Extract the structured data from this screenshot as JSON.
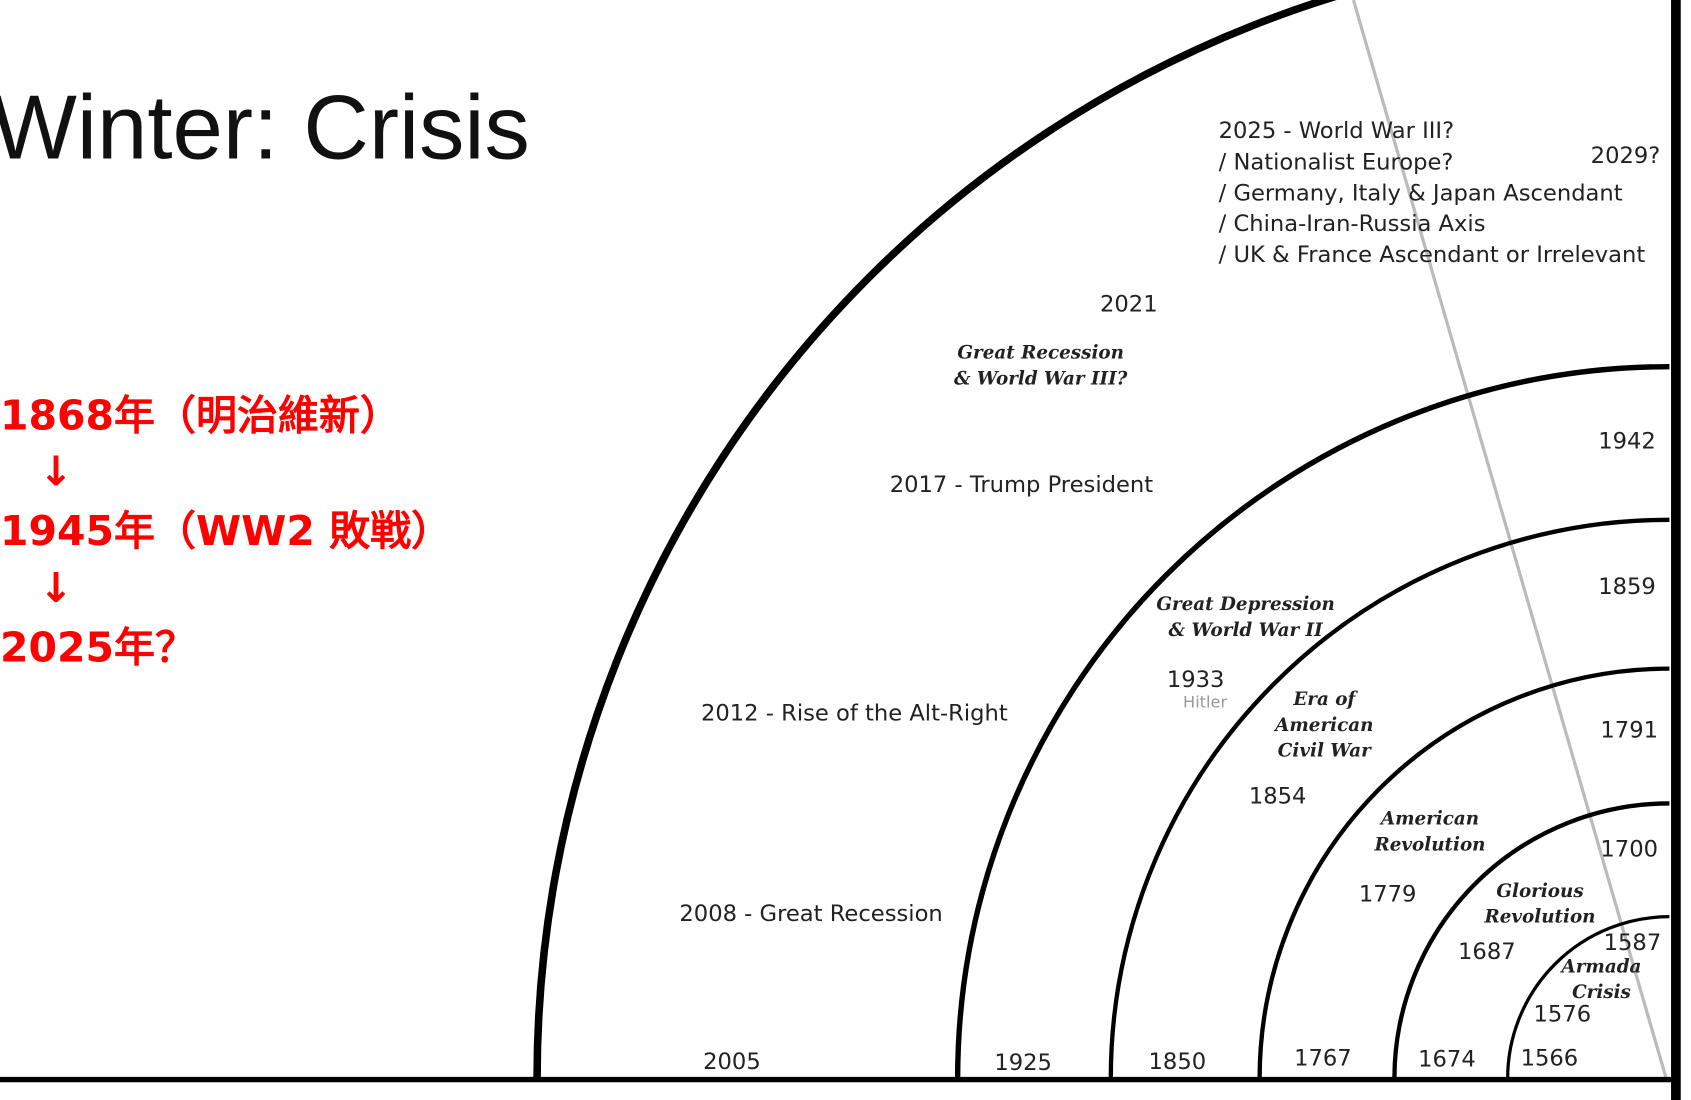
{
  "title": "Winter: Crisis",
  "note": [
    "1868年（明治維新）",
    "↓",
    "1945年（WW2 敗戦）",
    "↓",
    "2025年？"
  ],
  "forecast": [
    "2025 - World War III?",
    "/ Nationalist Europe?",
    "/ Germany, Italy & Japan Ascendant",
    "/ China-Iran-Russia Axis",
    "/ UK & France Ascendant or Irrelevant"
  ],
  "labels": [
    "2029?",
    "2021",
    "2017 - Trump President",
    "1942",
    "1859",
    "1933",
    "2012 - Rise of the Alt-Right",
    "1791",
    "1854",
    "1700",
    "1779",
    "2008 - Great Recession",
    "1687",
    "1587",
    "1576",
    "2005",
    "1925",
    "1850",
    "1767",
    "1674",
    "1566"
  ],
  "small_label": "Hitler",
  "eras": [
    [
      "Great Recession",
      "& World War III?"
    ],
    [
      "Great Depression",
      "& World War II"
    ],
    [
      "Era of",
      "American",
      "Civil War"
    ],
    [
      "American",
      "Revolution"
    ],
    [
      "Glorious",
      "Revolution"
    ],
    [
      "Armada",
      "Crisis"
    ]
  ]
}
